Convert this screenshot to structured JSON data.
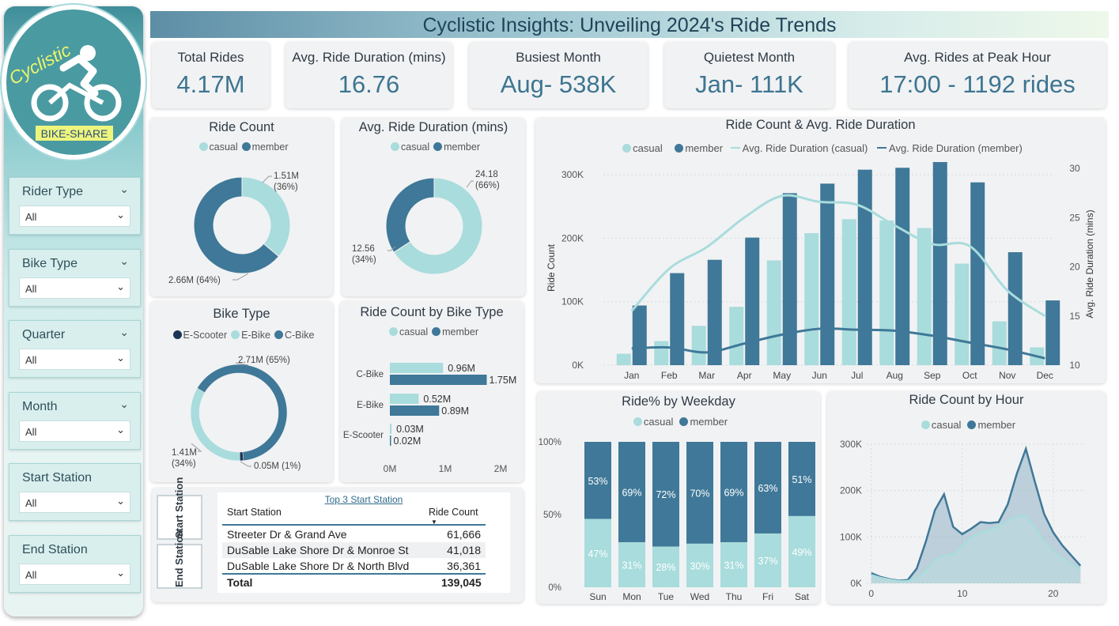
{
  "header": {
    "title": "Cyclistic Insights: Unveiling 2024's Ride Trends"
  },
  "logo": {
    "brand": "Cyclistic",
    "tag": "BIKE-SHARE"
  },
  "colors": {
    "casual": "#a9dcdc",
    "member": "#3f7898",
    "escooter": "#1c3556",
    "kpi_value": "#3d7590"
  },
  "filters": [
    {
      "label": "Rider Type",
      "value": "All"
    },
    {
      "label": "Bike Type",
      "value": "All"
    },
    {
      "label": "Quarter",
      "value": "All"
    },
    {
      "label": "Month",
      "value": "All"
    },
    {
      "label": "Start Station",
      "value": "All"
    },
    {
      "label": "End Station",
      "value": "All"
    }
  ],
  "kpis": [
    {
      "title": "Total Rides",
      "value": "4.17M"
    },
    {
      "title": "Avg. Ride Duration (mins)",
      "value": "16.76"
    },
    {
      "title": "Busiest Month",
      "value": "Aug- 538K"
    },
    {
      "title": "Quietest Month",
      "value": "Jan- 111K"
    },
    {
      "title": "Avg. Rides at Peak Hour",
      "value": "17:00 - 1192 rides"
    }
  ],
  "legend": {
    "casual": "casual",
    "member": "member",
    "avg_casual": "Avg. Ride Duration (casual)",
    "avg_member": "Avg. Ride Duration (member)",
    "escooter": "E-Scooter",
    "ebike": "E-Bike",
    "cbike": "C-Bike"
  },
  "station_table": {
    "title": "Top 3 Start Station",
    "toggle_start": "Start Station",
    "toggle_end": "End Station",
    "columns": [
      "Start Station",
      "Ride Count"
    ],
    "rows": [
      {
        "name": "Streeter Dr & Grand Ave",
        "count": "61,666"
      },
      {
        "name": "DuSable Lake Shore Dr & Monroe St",
        "count": "41,018"
      },
      {
        "name": "DuSable Lake Shore Dr & North Blvd",
        "count": "36,361"
      }
    ],
    "total_label": "Total",
    "total_value": "139,045"
  },
  "chart_data": [
    {
      "id": "ride-count-donut",
      "type": "pie",
      "title": "Ride Count",
      "labels": [
        "casual",
        "member"
      ],
      "values": [
        1.51,
        2.66
      ],
      "data_labels": [
        "1.51M\n(36%)",
        "2.66M (64%)"
      ]
    },
    {
      "id": "avg-duration-donut",
      "type": "pie",
      "title": "Avg. Ride Duration (mins)",
      "labels": [
        "casual",
        "member"
      ],
      "values": [
        24.18,
        12.56
      ],
      "data_labels": [
        "24.18\n(66%)",
        "12.56\n(34%)"
      ]
    },
    {
      "id": "bike-type-donut",
      "type": "pie",
      "title": "Bike Type",
      "labels": [
        "E-Scooter",
        "E-Bike",
        "C-Bike"
      ],
      "values": [
        0.05,
        1.41,
        2.71
      ],
      "data_labels": [
        "0.05M (1%)",
        "1.41M\n(34%)",
        "2.71M (65%)"
      ]
    },
    {
      "id": "bike-type-bars",
      "type": "bar",
      "orientation": "horizontal",
      "title": "Ride Count by Bike Type",
      "categories": [
        "C-Bike",
        "E-Bike",
        "E-Scooter"
      ],
      "series": [
        {
          "name": "casual",
          "values": [
            0.96,
            0.52,
            0.03
          ],
          "labels": [
            "0.96M",
            "0.52M",
            "0.03M"
          ]
        },
        {
          "name": "member",
          "values": [
            1.75,
            0.89,
            0.02
          ],
          "labels": [
            "1.75M",
            "0.89M",
            "0.02M"
          ]
        }
      ],
      "xlim": [
        0,
        2
      ],
      "x_ticks": [
        "0M",
        "1M",
        "2M"
      ]
    },
    {
      "id": "monthly-combo",
      "type": "bar",
      "title": "Ride Count & Avg. Ride Duration",
      "categories": [
        "Jan",
        "Feb",
        "Mar",
        "Apr",
        "May",
        "Jun",
        "Jul",
        "Aug",
        "Sep",
        "Oct",
        "Nov",
        "Dec"
      ],
      "series": [
        {
          "name": "casual",
          "values": [
            18000,
            38000,
            62000,
            92000,
            165000,
            208000,
            230000,
            228000,
            216000,
            160000,
            69000,
            28000
          ]
        },
        {
          "name": "member",
          "values": [
            94000,
            145000,
            166000,
            201000,
            271000,
            286000,
            308000,
            311000,
            320000,
            288000,
            178000,
            102000
          ]
        },
        {
          "name": "Avg. Ride Duration (casual)",
          "type": "line",
          "axis": "right",
          "values": [
            15.5,
            19.8,
            22.0,
            25.0,
            27.2,
            26.6,
            26.3,
            24.2,
            22.3,
            22.1,
            17.6,
            15.0
          ]
        },
        {
          "name": "Avg. Ride Duration (member)",
          "type": "line",
          "axis": "right",
          "values": [
            11.7,
            11.8,
            11.3,
            12.2,
            13.1,
            13.7,
            13.6,
            13.5,
            13.0,
            12.3,
            11.6,
            10.7
          ]
        }
      ],
      "ylabel": "Ride Count",
      "ylim": [
        0,
        330000
      ],
      "y_ticks": [
        "0K",
        "100K",
        "200K",
        "300K"
      ],
      "y2label": "Avg. Ride Duration (mins)",
      "y2lim": [
        10,
        30
      ],
      "y2_ticks": [
        "10",
        "15",
        "20",
        "25",
        "30"
      ],
      "grid": true,
      "legend": "top"
    },
    {
      "id": "weekday-stacked",
      "type": "bar",
      "stacked": "percent",
      "title": "Ride% by Weekday",
      "categories": [
        "Sun",
        "Mon",
        "Tue",
        "Wed",
        "Thu",
        "Fri",
        "Sat"
      ],
      "series": [
        {
          "name": "casual",
          "values": [
            47,
            31,
            28,
            30,
            31,
            37,
            49
          ]
        },
        {
          "name": "member",
          "values": [
            53,
            69,
            72,
            70,
            69,
            63,
            51
          ]
        }
      ],
      "y_ticks": [
        "0%",
        "50%",
        "100%"
      ],
      "ylim": [
        0,
        100
      ]
    },
    {
      "id": "hourly-area",
      "type": "area",
      "title": "Ride Count by Hour",
      "x": [
        0,
        1,
        2,
        3,
        4,
        5,
        6,
        7,
        8,
        9,
        10,
        11,
        12,
        13,
        14,
        15,
        16,
        17,
        18,
        19,
        20,
        21,
        22,
        23
      ],
      "series": [
        {
          "name": "casual",
          "values": [
            18000,
            12000,
            8000,
            5000,
            5000,
            12000,
            28000,
            52000,
            60000,
            62000,
            80000,
            100000,
            110000,
            115000,
            123000,
            135000,
            143000,
            146000,
            120000,
            90000,
            70000,
            55000,
            42000,
            30000
          ]
        },
        {
          "name": "member",
          "values": [
            22000,
            14000,
            9000,
            6000,
            7000,
            32000,
            90000,
            158000,
            192000,
            122000,
            106000,
            118000,
            132000,
            130000,
            132000,
            170000,
            236000,
            290000,
            218000,
            150000,
            110000,
            82000,
            60000,
            38000
          ]
        }
      ],
      "ylim": [
        0,
        300000
      ],
      "y_ticks": [
        "0K",
        "100K",
        "200K",
        "300K"
      ],
      "x_ticks": [
        "0",
        "10",
        "20"
      ],
      "xlim": [
        -0.5,
        23.5
      ]
    }
  ]
}
